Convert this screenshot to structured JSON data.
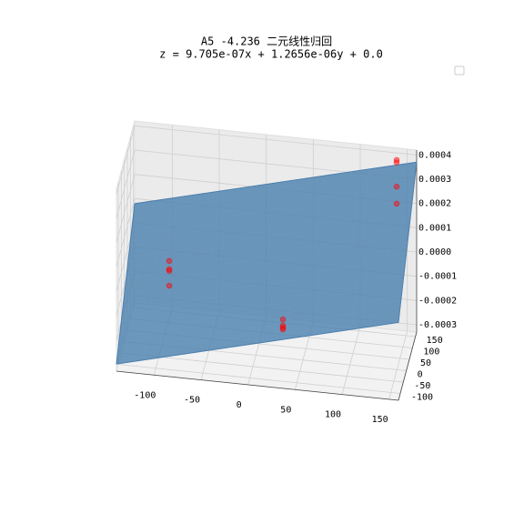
{
  "chart_data": {
    "type": "scatter3d",
    "title": "A5 -4.236 二元线性归回",
    "subtitle": "z = 9.705e-07x + 1.2656e-06y + 0.0",
    "plane": {
      "x_coef": 9.705e-07,
      "y_coef": 1.2656e-06,
      "intercept": 0.0,
      "color": "#4a7fae"
    },
    "series": [
      {
        "color": "#ff0000",
        "x": [
          -100,
          -100,
          -100,
          -100,
          140,
          140,
          140,
          140,
          30,
          30,
          30,
          30
        ],
        "y": [
          120,
          120,
          120,
          120,
          150,
          150,
          150,
          150,
          -20,
          -20,
          -20,
          -20
        ],
        "z": [
          -9.4e-05,
          -0.000128,
          -0.000135,
          -0.000196,
          0.00039,
          0.00038,
          0.00028,
          0.00021,
          -0.000152,
          -0.000178,
          -0.000186,
          -0.000193
        ]
      }
    ],
    "xlim": [
      -140,
      160
    ],
    "ylim": [
      -130,
      170
    ],
    "zlim": [
      -0.00033,
      0.00042
    ],
    "xticks": [
      -100,
      -50,
      0,
      50,
      100,
      150
    ],
    "yticks": [
      -100,
      -50,
      0,
      50,
      100,
      150
    ],
    "zticks": [
      0.0004,
      0.0003,
      0.0002,
      0.0001,
      {
        "value": 0,
        "label": "0.0000"
      },
      {
        "value": -0.0001,
        "label": "-0.0001"
      },
      {
        "value": -0.0002,
        "label": "-0.0002"
      },
      {
        "value": -0.0003,
        "label": "-0.0003"
      }
    ],
    "grid": true,
    "legend": "upper right"
  }
}
